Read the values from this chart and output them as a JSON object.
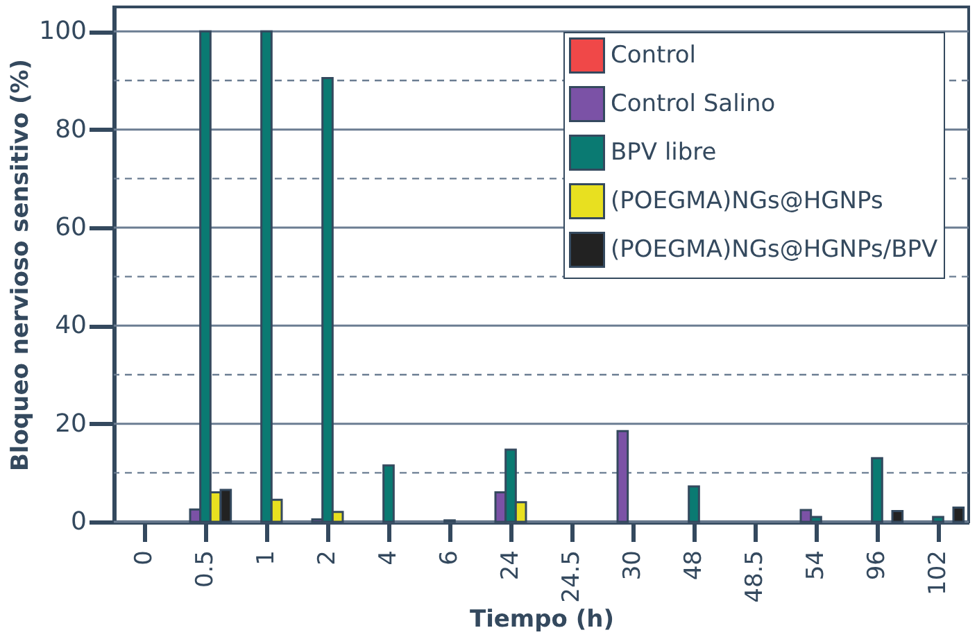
{
  "chart_data": {
    "type": "bar",
    "xlabel": "Tiempo (h)",
    "ylabel": "Bloqueo nervioso sensitivo (%)",
    "categories": [
      "0",
      "0.5",
      "1",
      "2",
      "4",
      "6",
      "24",
      "24.5",
      "30",
      "48",
      "48.5",
      "54",
      "96",
      "102"
    ],
    "series": [
      {
        "name": "Control",
        "color": "#f04848",
        "values": [
          null,
          null,
          null,
          null,
          null,
          null,
          null,
          null,
          null,
          null,
          null,
          null,
          null,
          null
        ]
      },
      {
        "name": "Control Salino",
        "color": "#7b52a6",
        "values": [
          null,
          2.5,
          null,
          0.5,
          null,
          null,
          6,
          null,
          18.5,
          null,
          null,
          2.4,
          null,
          null
        ]
      },
      {
        "name": "BPV libre",
        "color": "#0a7a72",
        "values": [
          null,
          100,
          100,
          90.5,
          11.5,
          0.3,
          14.7,
          null,
          null,
          7.2,
          null,
          1,
          13,
          1
        ]
      },
      {
        "name": "(POEGMA)NGs@HGNPs",
        "color": "#e8e020",
        "values": [
          null,
          6,
          4.5,
          2,
          null,
          null,
          4,
          null,
          null,
          null,
          null,
          null,
          null,
          null
        ]
      },
      {
        "name": "(POEGMA)NGs@HGNPs/BPV",
        "color": "#222222",
        "values": [
          null,
          6.5,
          null,
          null,
          null,
          null,
          null,
          null,
          null,
          null,
          null,
          null,
          2.2,
          2.9
        ]
      }
    ],
    "ylim": [
      0,
      105
    ],
    "yticks": [
      0,
      {
        "value": 10,
        "label": null
      },
      20,
      {
        "value": 30,
        "label": null
      },
      40,
      {
        "value": 50,
        "label": null
      },
      60,
      {
        "value": 70,
        "label": null
      },
      80,
      {
        "value": 90,
        "label": null
      },
      100
    ],
    "grid": "y",
    "legend": "top right"
  }
}
